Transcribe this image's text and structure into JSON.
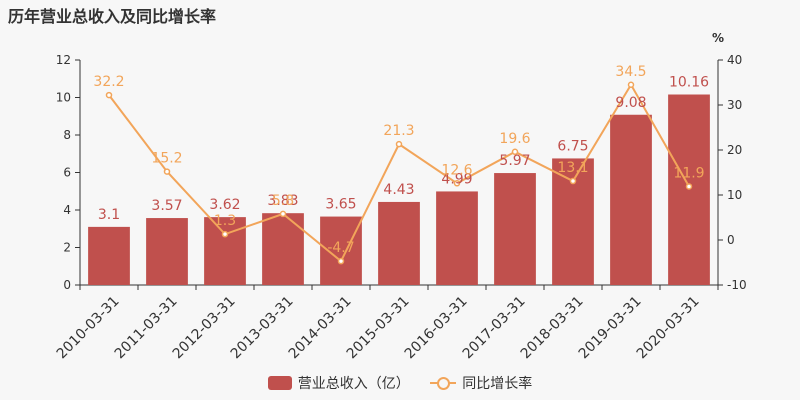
{
  "title": "历年营业总收入及同比增长率",
  "colors": {
    "bar": "#c0504d",
    "line": "#f2a55a",
    "barLabel": "#c0504d",
    "lineLabel": "#f2a55a",
    "axis": "#333333"
  },
  "chart_data": {
    "type": "bar",
    "title": "历年营业总收入及同比增长率",
    "categories": [
      "2010-03-31",
      "2011-03-31",
      "2012-03-31",
      "2013-03-31",
      "2014-03-31",
      "2015-03-31",
      "2016-03-31",
      "2017-03-31",
      "2018-03-31",
      "2019-03-31",
      "2020-03-31"
    ],
    "series": [
      {
        "name": "营业总收入（亿）",
        "type": "bar",
        "axis": "left",
        "values": [
          3.1,
          3.57,
          3.62,
          3.83,
          3.65,
          4.43,
          4.99,
          5.97,
          6.75,
          9.08,
          10.16
        ]
      },
      {
        "name": "同比增长率",
        "type": "line",
        "axis": "right",
        "values": [
          32.2,
          15.2,
          1.3,
          5.8,
          -4.7,
          21.3,
          12.6,
          19.6,
          13.1,
          34.5,
          11.9
        ]
      }
    ],
    "y_left": {
      "lim": [
        0,
        12
      ],
      "ticks": [
        0,
        2,
        4,
        6,
        8,
        10,
        12
      ]
    },
    "y_right": {
      "unit": "%",
      "lim": [
        -10,
        40
      ],
      "ticks": [
        -10,
        0,
        10,
        20,
        30,
        40
      ]
    },
    "legend": "bottom-center",
    "grid": false
  }
}
